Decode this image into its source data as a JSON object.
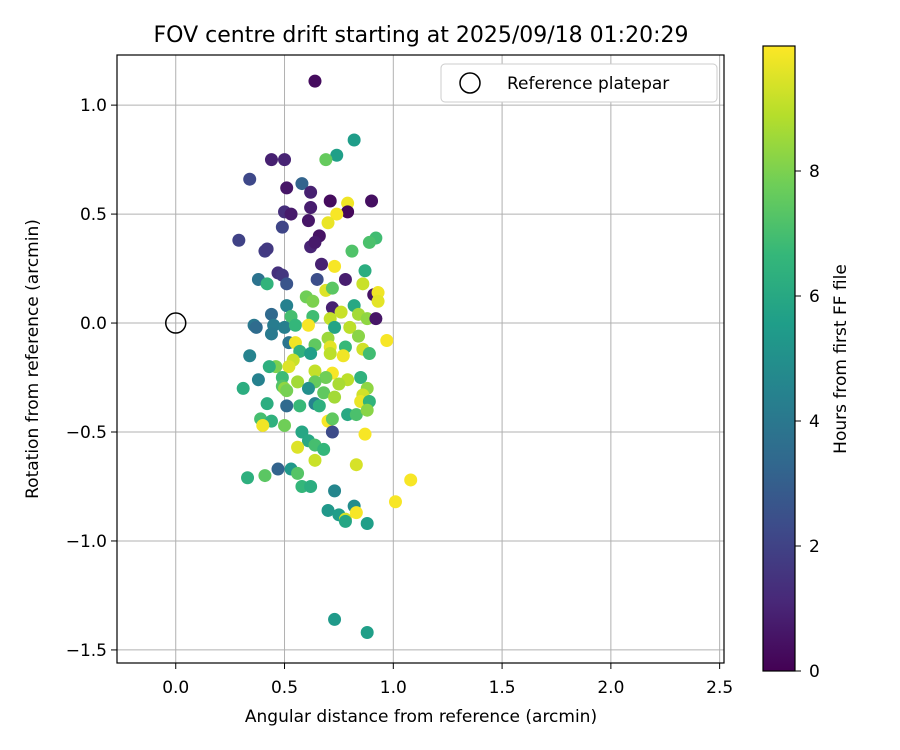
{
  "chart_data": {
    "type": "scatter",
    "title": "FOV centre drift starting at 2025/09/18 01:20:29",
    "xlabel": "Angular distance from reference (arcmin)",
    "ylabel": "Rotation from reference (arcmin)",
    "xlim": [
      -0.27,
      2.52
    ],
    "ylim": [
      -1.56,
      1.23
    ],
    "grid": true,
    "xticks": [
      0.0,
      0.5,
      1.0,
      1.5,
      2.0,
      2.5
    ],
    "xtick_labels": [
      "0.0",
      "0.5",
      "1.0",
      "1.5",
      "2.0",
      "2.5"
    ],
    "yticks": [
      1.0,
      0.5,
      0.0,
      -0.5,
      -1.0,
      -1.5
    ],
    "ytick_labels": [
      "1.0",
      "0.5",
      "0.0",
      "−0.5",
      "−1.0",
      "−1.5"
    ],
    "legend": {
      "label": "Reference platepar",
      "position": "top-right"
    },
    "reference_point": {
      "x": 0.0,
      "y": 0.0
    },
    "colorbar": {
      "label": "Hours from first FF file",
      "min": 0,
      "max": 10,
      "ticks": [
        0,
        2,
        4,
        6,
        8
      ],
      "tick_labels": [
        "0",
        "2",
        "4",
        "6",
        "8"
      ],
      "colormap": [
        "#440154",
        "#482878",
        "#3e4989",
        "#31688e",
        "#26828e",
        "#1f9e89",
        "#35b779",
        "#6ece58",
        "#b5de2b",
        "#fde725"
      ]
    },
    "points": [
      [
        0.64,
        1.11,
        0.3
      ],
      [
        0.82,
        0.84,
        5.5
      ],
      [
        0.74,
        0.77,
        5.6
      ],
      [
        0.69,
        0.75,
        7.6
      ],
      [
        0.44,
        0.75,
        0.9
      ],
      [
        0.5,
        0.75,
        1.0
      ],
      [
        0.34,
        0.66,
        2.2
      ],
      [
        0.58,
        0.64,
        3.2
      ],
      [
        0.51,
        0.62,
        0.6
      ],
      [
        0.62,
        0.6,
        0.9
      ],
      [
        0.71,
        0.56,
        0.3
      ],
      [
        0.9,
        0.56,
        0.4
      ],
      [
        0.79,
        0.55,
        9.8
      ],
      [
        0.5,
        0.51,
        1.3
      ],
      [
        0.53,
        0.5,
        0.7
      ],
      [
        0.62,
        0.53,
        0.8
      ],
      [
        0.79,
        0.51,
        0.2
      ],
      [
        0.74,
        0.5,
        9.9
      ],
      [
        0.61,
        0.47,
        0.6
      ],
      [
        0.7,
        0.46,
        9.7
      ],
      [
        0.49,
        0.44,
        2.1
      ],
      [
        0.66,
        0.4,
        0.5
      ],
      [
        0.29,
        0.38,
        2.0
      ],
      [
        0.92,
        0.39,
        6.9
      ],
      [
        0.89,
        0.37,
        7.1
      ],
      [
        0.41,
        0.33,
        1.8
      ],
      [
        0.42,
        0.34,
        1.7
      ],
      [
        0.62,
        0.35,
        1.0
      ],
      [
        0.64,
        0.37,
        0.7
      ],
      [
        0.81,
        0.33,
        7.2
      ],
      [
        0.67,
        0.27,
        0.9
      ],
      [
        0.73,
        0.26,
        9.9
      ],
      [
        0.87,
        0.24,
        6.2
      ],
      [
        0.47,
        0.23,
        1.4
      ],
      [
        0.49,
        0.22,
        1.6
      ],
      [
        0.65,
        0.2,
        2.4
      ],
      [
        0.38,
        0.2,
        3.8
      ],
      [
        0.42,
        0.18,
        6.5
      ],
      [
        0.51,
        0.18,
        2.6
      ],
      [
        0.78,
        0.2,
        0.8
      ],
      [
        0.86,
        0.18,
        9.2
      ],
      [
        0.69,
        0.15,
        9.5
      ],
      [
        0.72,
        0.16,
        7.4
      ],
      [
        0.91,
        0.13,
        0.5
      ],
      [
        0.93,
        0.14,
        9.8
      ],
      [
        0.6,
        0.12,
        7.8
      ],
      [
        0.63,
        0.1,
        8.0
      ],
      [
        0.51,
        0.08,
        4.4
      ],
      [
        0.72,
        0.07,
        0.9
      ],
      [
        0.82,
        0.08,
        6.0
      ],
      [
        0.93,
        0.1,
        9.6
      ],
      [
        0.76,
        0.05,
        9.2
      ],
      [
        0.44,
        0.04,
        3.4
      ],
      [
        0.53,
        0.03,
        7.0
      ],
      [
        0.63,
        0.03,
        6.9
      ],
      [
        0.71,
        0.02,
        9.1
      ],
      [
        0.84,
        0.04,
        8.6
      ],
      [
        0.88,
        0.02,
        8.3
      ],
      [
        0.92,
        0.02,
        0.6
      ],
      [
        0.36,
        -0.01,
        4.0
      ],
      [
        0.37,
        -0.02,
        3.5
      ],
      [
        0.45,
        -0.01,
        4.2
      ],
      [
        0.5,
        -0.02,
        4.3
      ],
      [
        0.55,
        -0.01,
        6.6
      ],
      [
        0.61,
        -0.01,
        9.9
      ],
      [
        0.73,
        -0.02,
        5.8
      ],
      [
        0.8,
        -0.02,
        9.0
      ],
      [
        0.44,
        -0.05,
        4.1
      ],
      [
        0.84,
        -0.06,
        8.2
      ],
      [
        0.7,
        -0.07,
        8.5
      ],
      [
        0.97,
        -0.08,
        9.9
      ],
      [
        0.52,
        -0.09,
        3.9
      ],
      [
        0.55,
        -0.09,
        9.8
      ],
      [
        0.64,
        -0.1,
        7.5
      ],
      [
        0.71,
        -0.11,
        9.6
      ],
      [
        0.78,
        -0.11,
        6.7
      ],
      [
        0.86,
        -0.12,
        9.3
      ],
      [
        0.57,
        -0.13,
        6.4
      ],
      [
        0.62,
        -0.14,
        5.6
      ],
      [
        0.71,
        -0.14,
        9.0
      ],
      [
        0.77,
        -0.15,
        9.8
      ],
      [
        0.34,
        -0.15,
        4.5
      ],
      [
        0.89,
        -0.14,
        6.9
      ],
      [
        0.54,
        -0.17,
        9.2
      ],
      [
        0.46,
        -0.2,
        8.0
      ],
      [
        0.52,
        -0.2,
        9.5
      ],
      [
        0.43,
        -0.2,
        6.3
      ],
      [
        0.64,
        -0.22,
        9.1
      ],
      [
        0.72,
        -0.23,
        9.9
      ],
      [
        0.69,
        -0.25,
        7.8
      ],
      [
        0.79,
        -0.26,
        9.0
      ],
      [
        0.49,
        -0.25,
        6.8
      ],
      [
        0.85,
        -0.25,
        6.4
      ],
      [
        0.38,
        -0.26,
        4.4
      ],
      [
        0.56,
        -0.27,
        8.6
      ],
      [
        0.64,
        -0.27,
        7.6
      ],
      [
        0.75,
        -0.28,
        8.7
      ],
      [
        0.49,
        -0.29,
        7.3
      ],
      [
        0.5,
        -0.3,
        8.3
      ],
      [
        0.51,
        -0.31,
        7.9
      ],
      [
        0.61,
        -0.3,
        5.0
      ],
      [
        0.68,
        -0.32,
        7.5
      ],
      [
        0.88,
        -0.3,
        8.3
      ],
      [
        0.31,
        -0.3,
        6.2
      ],
      [
        0.86,
        -0.33,
        9.3
      ],
      [
        0.73,
        -0.34,
        8.6
      ],
      [
        0.85,
        -0.36,
        9.7
      ],
      [
        0.89,
        -0.36,
        6.5
      ],
      [
        0.64,
        -0.37,
        4.5
      ],
      [
        0.66,
        -0.38,
        6.3
      ],
      [
        0.57,
        -0.38,
        6.7
      ],
      [
        0.51,
        -0.38,
        3.4
      ],
      [
        0.42,
        -0.37,
        6.2
      ],
      [
        0.79,
        -0.42,
        6.0
      ],
      [
        0.83,
        -0.42,
        7.1
      ],
      [
        0.88,
        -0.4,
        8.2
      ],
      [
        0.39,
        -0.44,
        7.0
      ],
      [
        0.44,
        -0.45,
        6.4
      ],
      [
        0.7,
        -0.45,
        9.9
      ],
      [
        0.72,
        -0.44,
        7.5
      ],
      [
        0.4,
        -0.47,
        9.8
      ],
      [
        0.5,
        -0.47,
        7.8
      ],
      [
        0.58,
        -0.5,
        5.9
      ],
      [
        0.72,
        -0.5,
        2.3
      ],
      [
        0.87,
        -0.51,
        9.9
      ],
      [
        0.61,
        -0.54,
        6.0
      ],
      [
        0.64,
        -0.56,
        7.0
      ],
      [
        0.56,
        -0.57,
        9.5
      ],
      [
        0.68,
        -0.58,
        6.6
      ],
      [
        0.64,
        -0.63,
        9.2
      ],
      [
        0.83,
        -0.65,
        9.4
      ],
      [
        0.47,
        -0.67,
        3.2
      ],
      [
        0.53,
        -0.67,
        5.3
      ],
      [
        0.56,
        -0.69,
        7.3
      ],
      [
        0.33,
        -0.71,
        6.3
      ],
      [
        0.41,
        -0.7,
        7.4
      ],
      [
        1.08,
        -0.72,
        9.9
      ],
      [
        0.58,
        -0.75,
        6.6
      ],
      [
        0.62,
        -0.75,
        6.2
      ],
      [
        0.73,
        -0.77,
        4.6
      ],
      [
        1.01,
        -0.82,
        9.9
      ],
      [
        0.82,
        -0.84,
        4.9
      ],
      [
        0.7,
        -0.86,
        5.3
      ],
      [
        0.75,
        -0.88,
        5.5
      ],
      [
        0.78,
        -0.9,
        9.4
      ],
      [
        0.78,
        -0.91,
        5.9
      ],
      [
        0.83,
        -0.87,
        9.9
      ],
      [
        0.88,
        -0.92,
        5.6
      ],
      [
        0.73,
        -1.36,
        5.4
      ],
      [
        0.88,
        -1.42,
        5.6
      ]
    ]
  }
}
